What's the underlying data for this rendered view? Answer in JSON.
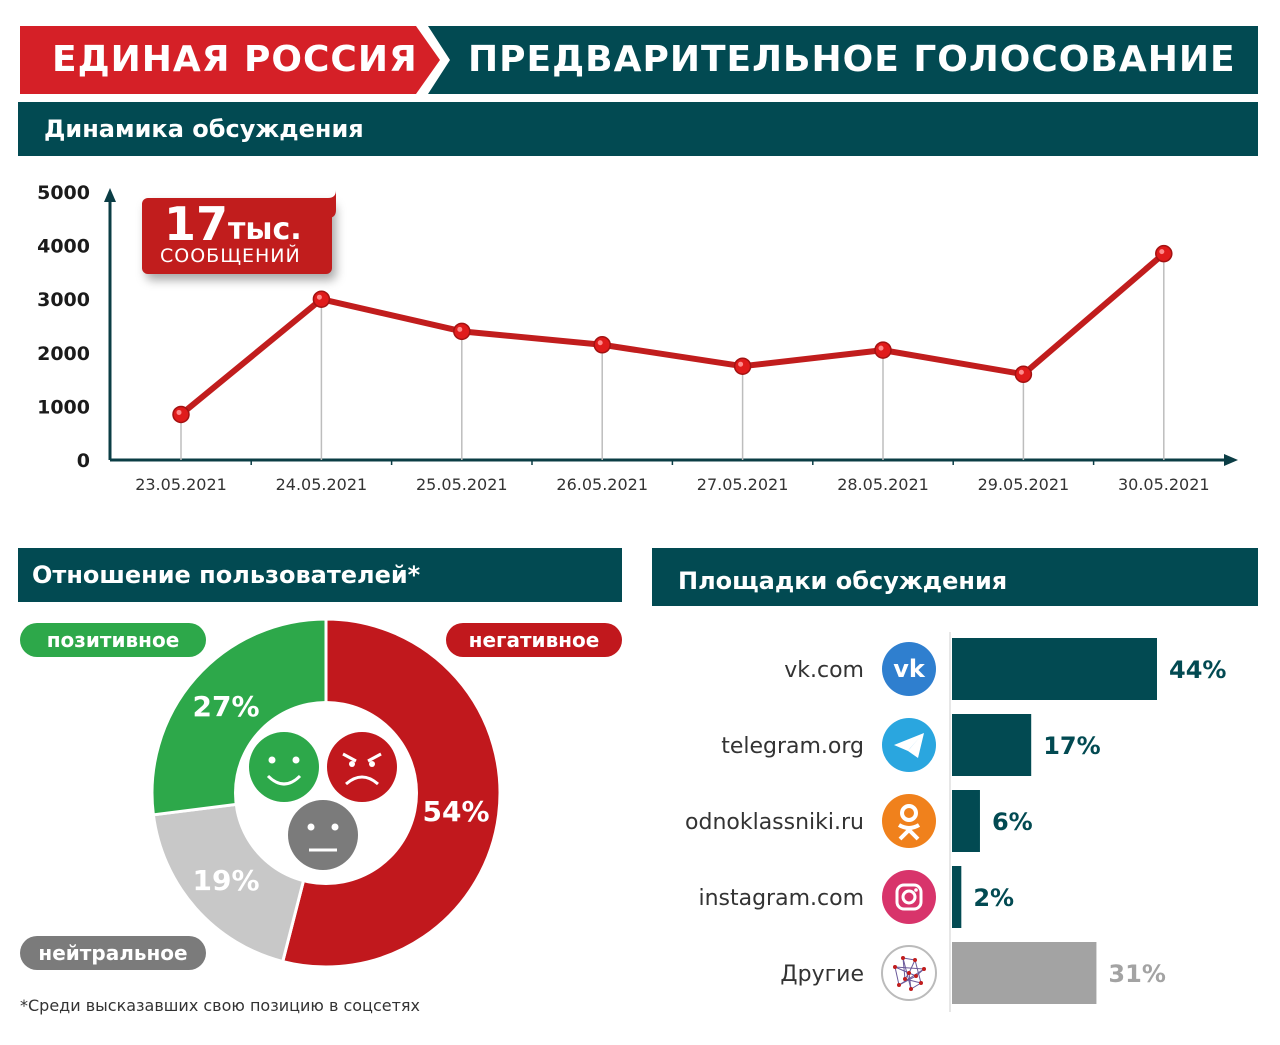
{
  "header": {
    "left_title": "ЕДИНАЯ РОССИЯ",
    "right_title": "ПРЕДВАРИТЕЛЬНОЕ ГОЛОСОВАНИЕ",
    "colors": {
      "red": "#d52027",
      "teal": "#024a52"
    }
  },
  "dynamics": {
    "section_title": "Динамика обсуждения",
    "badge_number": "17",
    "badge_unit": "тыс.",
    "badge_caption": "СООБЩЕНИЙ"
  },
  "sentiment": {
    "section_title": "Отношение пользователей*",
    "positive_label": "позитивное",
    "negative_label": "негативное",
    "neutral_label": "нейтральное",
    "footnote": "*Среди высказавших свою позицию в соцсетях"
  },
  "platforms": {
    "section_title": "Площадки обсуждения"
  },
  "chart_data": [
    {
      "type": "line",
      "title": "Динамика обсуждения",
      "categories": [
        "23.05.2021",
        "24.05.2021",
        "25.05.2021",
        "26.05.2021",
        "27.05.2021",
        "28.05.2021",
        "29.05.2021",
        "30.05.2021"
      ],
      "values": [
        850,
        3000,
        2400,
        2150,
        1750,
        2050,
        1600,
        3850
      ],
      "ylim": [
        0,
        5000
      ],
      "yticks": [
        "5000",
        "4000",
        "3000",
        "2000",
        "1000",
        "0"
      ],
      "color": "#c11d1d"
    },
    {
      "type": "pie",
      "title": "Отношение пользователей*",
      "labels": [
        "негативное",
        "нейтральное",
        "позитивное"
      ],
      "values": [
        54,
        19,
        27
      ],
      "value_labels": [
        "54%",
        "19%",
        "27%"
      ],
      "colors": [
        "#c1181d",
        "#c8c8c8",
        "#2da84a"
      ]
    },
    {
      "type": "bar",
      "title": "Площадки обсуждения",
      "categories": [
        "vk.com",
        "telegram.org",
        "odnoklassniki.ru",
        "instagram.com",
        "Другие"
      ],
      "values": [
        44,
        17,
        6,
        2,
        31
      ],
      "value_labels": [
        "44%",
        "17%",
        "6%",
        "2%",
        "31%"
      ],
      "icons": [
        "vk-icon",
        "telegram-icon",
        "odnoklassniki-icon",
        "instagram-icon",
        "network-icon"
      ],
      "colors": [
        "#024a52",
        "#024a52",
        "#024a52",
        "#024a52",
        "#a3a3a3"
      ]
    }
  ]
}
